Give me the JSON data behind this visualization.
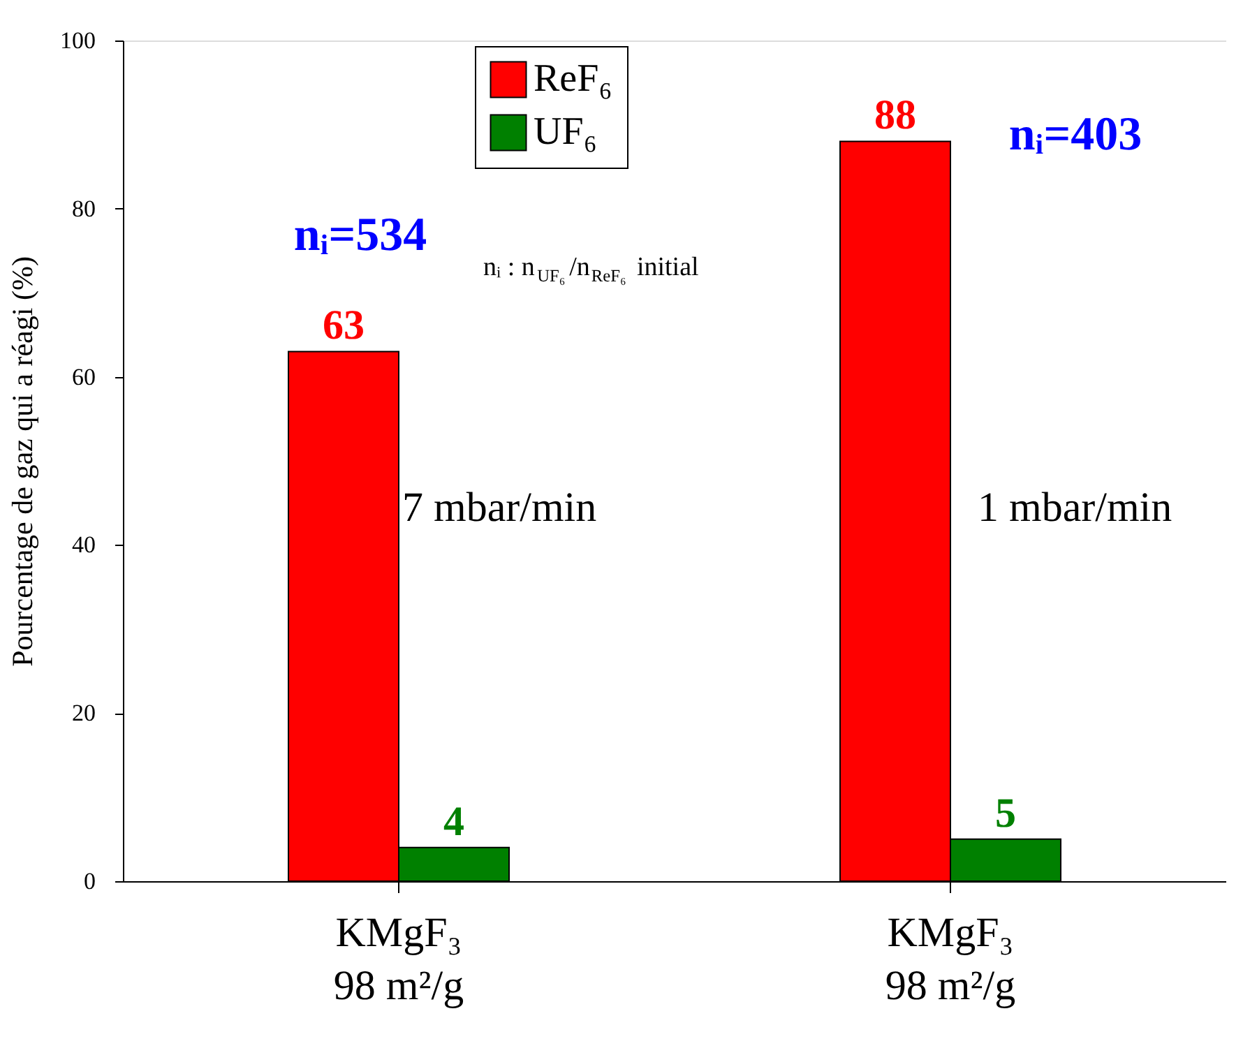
{
  "chart_data": {
    "type": "bar",
    "categories": [
      "KMgF₃\n98 m²/g",
      "KMgF₃\n98 m²/g"
    ],
    "ylabel": "Pourcentage de gaz qui a réagi (%)",
    "ylim": [
      0,
      100
    ],
    "yticks": [
      0,
      20,
      40,
      60,
      80,
      100
    ],
    "grid": false,
    "legend": "top",
    "data_labels": true,
    "series": [
      {
        "name": "ReF₆",
        "color": "#ff0000",
        "values": [
          63,
          88
        ]
      },
      {
        "name": "UF₆",
        "color": "#008000",
        "values": [
          4,
          5
        ]
      }
    ],
    "annotations": [
      "nᵢ=534",
      "nᵢ=403",
      "7 mbar/min",
      "1 mbar/min",
      "nᵢ : n$_{UF₆}$/n$_{ReF₆}$ initial"
    ]
  }
}
